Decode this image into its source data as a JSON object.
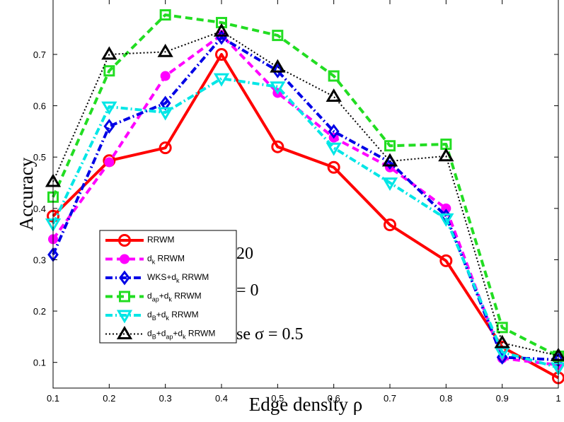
{
  "chart_data": {
    "type": "line",
    "title": "",
    "xlabel": "Edge density ρ",
    "ylabel": "Accuracy",
    "xlim": [
      0.1,
      1.0
    ],
    "ylim": [
      0.05,
      0.78
    ],
    "x_ticks": [
      "0.1",
      "0.2",
      "0.3",
      "0.4",
      "0.5",
      "0.6",
      "0.7",
      "0.8",
      "0.9",
      "1"
    ],
    "y_ticks": [
      "0.1",
      "0.2",
      "0.3",
      "0.4",
      "0.5",
      "0.6",
      "0.7"
    ],
    "x": [
      0.1,
      0.2,
      0.3,
      0.4,
      0.5,
      0.6,
      0.7,
      0.8,
      0.9,
      1.0
    ],
    "annotations": [
      "20",
      "= 0",
      "se σ = 0.5"
    ],
    "legend_position": "lower-left",
    "series": [
      {
        "name": "RRWM",
        "legend": [
          [
            "RRWM",
            ""
          ]
        ],
        "color": "#ff0000",
        "dash": "",
        "marker": "circle",
        "values": [
          0.385,
          0.493,
          0.518,
          0.7,
          0.52,
          0.48,
          0.368,
          0.298,
          0.13,
          0.07
        ]
      },
      {
        "name": "d_k RRWM",
        "legend": [
          [
            "d",
            ""
          ],
          [
            "k",
            "sub"
          ],
          [
            " RRWM",
            ""
          ]
        ],
        "color": "#ff00ff",
        "dash": "10,6",
        "marker": "dot",
        "values": [
          0.34,
          0.49,
          0.658,
          0.738,
          0.625,
          0.538,
          0.48,
          0.4,
          0.108,
          0.095
        ]
      },
      {
        "name": "WKS+d_k RRWM",
        "legend": [
          [
            "WKS+d",
            ""
          ],
          [
            "k",
            "sub"
          ],
          [
            " RRWM",
            ""
          ]
        ],
        "color": "#0000e6",
        "dash": "10,4,2,4",
        "marker": "diamond",
        "values": [
          0.31,
          0.56,
          0.605,
          0.733,
          0.668,
          0.55,
          0.49,
          0.385,
          0.11,
          0.105
        ]
      },
      {
        "name": "d_ap+d_k RRWM",
        "legend": [
          [
            "d",
            ""
          ],
          [
            "ap",
            "sub"
          ],
          [
            "+d",
            ""
          ],
          [
            "k",
            "sub"
          ],
          [
            " RRWM",
            ""
          ]
        ],
        "color": "#22dd22",
        "dash": "10,6",
        "marker": "square",
        "values": [
          0.422,
          0.668,
          0.777,
          0.762,
          0.737,
          0.658,
          0.522,
          0.525,
          0.168,
          0.112
        ]
      },
      {
        "name": "d_B+d_k RRWM",
        "legend": [
          [
            "d",
            ""
          ],
          [
            "B",
            "sub"
          ],
          [
            "+d",
            ""
          ],
          [
            "k",
            "sub"
          ],
          [
            " RRWM",
            ""
          ]
        ],
        "color": "#00e6e6",
        "dash": "10,4,2,4",
        "marker": "triangle-down",
        "values": [
          0.37,
          0.598,
          0.587,
          0.653,
          0.637,
          0.518,
          0.45,
          0.38,
          0.12,
          0.09
        ]
      },
      {
        "name": "d_B+d_ap+d_k RRWM",
        "legend": [
          [
            "d",
            ""
          ],
          [
            "B",
            "sub"
          ],
          [
            "+d",
            ""
          ],
          [
            "ap",
            "sub"
          ],
          [
            "+d",
            ""
          ],
          [
            "k",
            "sub"
          ],
          [
            " RRWM",
            ""
          ]
        ],
        "color": "#000000",
        "dash": "2,3",
        "marker": "triangle-up",
        "values": [
          0.452,
          0.7,
          0.705,
          0.745,
          0.675,
          0.618,
          0.492,
          0.502,
          0.138,
          0.113
        ]
      }
    ]
  }
}
